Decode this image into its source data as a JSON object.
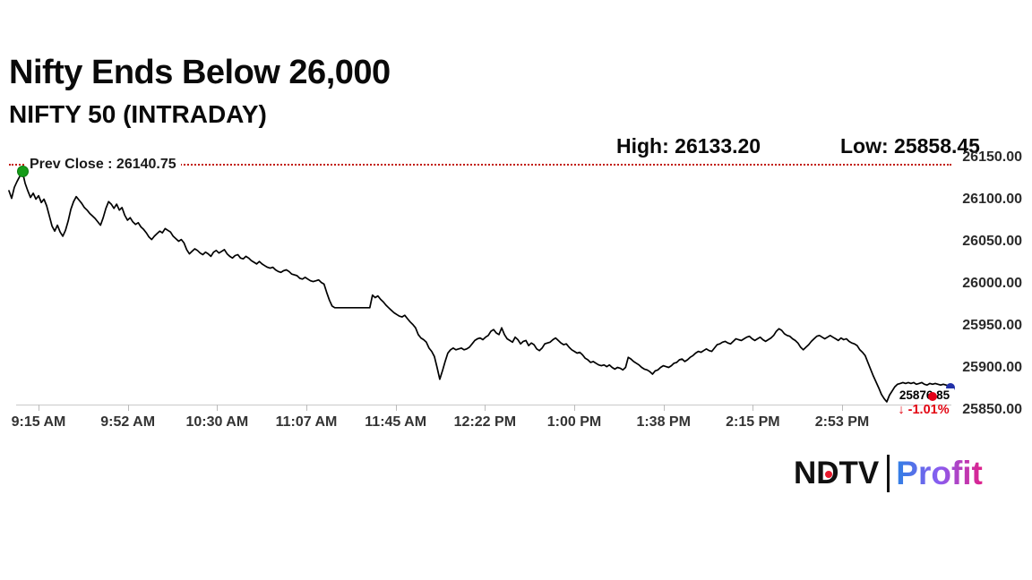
{
  "header": {
    "title": "Nifty Ends Below 26,000",
    "subtitle": "NIFTY 50 (INTRADAY)",
    "high": "High: 26133.20",
    "low": "Low: 25858.45"
  },
  "chart_data": {
    "type": "line",
    "title": "NIFTY 50 (INTRADAY)",
    "xlabel": "",
    "ylabel": "",
    "grid": false,
    "legend": false,
    "ylim": [
      25850,
      26150
    ],
    "y_ticks": [
      "26150.00",
      "26100.00",
      "26050.00",
      "26000.00",
      "25950.00",
      "25900.00",
      "25850.00"
    ],
    "x_ticks": [
      "9:15 AM",
      "9:52 AM",
      "10:30 AM",
      "11:07 AM",
      "11:45 AM",
      "12:22 PM",
      "1:00 PM",
      "1:38 PM",
      "2:15 PM",
      "2:53 PM"
    ],
    "prev_close": 26140.75,
    "prev_close_label": "Prev Close : 26140.75",
    "high": 26133.2,
    "low": 25858.45,
    "last_price": 25876.85,
    "last_price_label": "25876.85",
    "change_pct": -1.01,
    "change_label": "↓ -1.01%",
    "prices": [
      26110,
      26101,
      26114,
      26121,
      26127,
      26133,
      26119,
      26110,
      26102,
      26107,
      26100,
      26104,
      26096,
      26100,
      26092,
      26080,
      26068,
      26062,
      26069,
      26061,
      26056,
      26063,
      26074,
      26088,
      26097,
      26103,
      26099,
      26095,
      26090,
      26087,
      26083,
      26080,
      26077,
      26073,
      26069,
      26078,
      26089,
      26097,
      26094,
      26089,
      26094,
      26087,
      26090,
      26081,
      26075,
      26078,
      26073,
      26070,
      26072,
      26067,
      26064,
      26060,
      26055,
      26052,
      26056,
      26059,
      26062,
      26060,
      26065,
      26063,
      26061,
      26056,
      26053,
      26050,
      26052,
      26048,
      26040,
      26035,
      26038,
      26041,
      26039,
      26036,
      26034,
      26037,
      26035,
      26032,
      26037,
      26039,
      26036,
      26038,
      26040,
      26035,
      26032,
      26030,
      26033,
      26034,
      26030,
      26029,
      26032,
      26030,
      26027,
      26025,
      26023,
      26026,
      26023,
      26021,
      26019,
      26018,
      26019,
      26016,
      26014,
      26013,
      26015,
      26016,
      26014,
      26011,
      26010,
      26009,
      26006,
      26005,
      26007,
      26005,
      26003,
      26002,
      26003,
      26004,
      26001,
      25999,
      25989,
      25980,
      25973,
      25971,
      25971,
      25971,
      25971,
      25971,
      25971,
      25971,
      25971,
      25971,
      25971,
      25971,
      25971,
      25971,
      25971,
      25986,
      25983,
      25985,
      25981,
      25978,
      25974,
      25971,
      25968,
      25965,
      25963,
      25961,
      25960,
      25962,
      25958,
      25954,
      25951,
      25947,
      25939,
      25935,
      25933,
      25930,
      25923,
      25919,
      25913,
      25900,
      25886,
      25896,
      25907,
      25917,
      25921,
      25923,
      25921,
      25922,
      25923,
      25921,
      25922,
      25924,
      25928,
      25932,
      25934,
      25935,
      25933,
      25936,
      25938,
      25943,
      25945,
      25941,
      25939,
      25947,
      25939,
      25934,
      25932,
      25930,
      25936,
      25933,
      25928,
      25931,
      25932,
      25926,
      25929,
      25927,
      25922,
      25920,
      25923,
      25928,
      25929,
      25930,
      25933,
      25935,
      25932,
      25929,
      25927,
      25928,
      25924,
      25921,
      25919,
      25917,
      25918,
      25915,
      25911,
      25909,
      25906,
      25907,
      25905,
      25903,
      25902,
      25903,
      25901,
      25903,
      25900,
      25898,
      25900,
      25899,
      25897,
      25900,
      25912,
      25910,
      25907,
      25905,
      25903,
      25900,
      25898,
      25897,
      25895,
      25892,
      25896,
      25897,
      25900,
      25902,
      25901,
      25900,
      25902,
      25905,
      25906,
      25909,
      25910,
      25907,
      25909,
      25912,
      25914,
      25917,
      25919,
      25918,
      25920,
      25922,
      25920,
      25919,
      25923,
      25927,
      25928,
      25930,
      25931,
      25929,
      25928,
      25931,
      25934,
      25933,
      25932,
      25934,
      25936,
      25937,
      25934,
      25932,
      25934,
      25936,
      25933,
      25931,
      25933,
      25935,
      25938,
      25943,
      25946,
      25944,
      25940,
      25938,
      25937,
      25934,
      25932,
      25929,
      25924,
      25921,
      25924,
      25927,
      25931,
      25934,
      25937,
      25938,
      25936,
      25934,
      25936,
      25938,
      25936,
      25934,
      25932,
      25935,
      25933,
      25934,
      25931,
      25929,
      25928,
      25926,
      25921,
      25918,
      25914,
      25906,
      25898,
      25890,
      25883,
      25876,
      25868,
      25863,
      25859,
      25867,
      25872,
      25877,
      25880,
      25881,
      25882,
      25881,
      25882,
      25881,
      25882,
      25880,
      25881,
      25882,
      25880,
      25879,
      25881,
      25880,
      25881,
      25880,
      25879,
      25880,
      25879,
      25878,
      25876.85
    ]
  },
  "footer": {
    "brand_left": "NDTV",
    "brand_right": "Profit"
  },
  "colors": {
    "line": "#000000",
    "prev_close_line": "#c21807",
    "negative": "#e30613",
    "open_marker_green": "#169c19",
    "last_marker_blue": "#2130a8",
    "last_marker_red": "#e50019",
    "axis": "#c9c9c9",
    "profit_gradient": [
      "#2f80e4",
      "#8a5cf0",
      "#e0218a"
    ]
  }
}
